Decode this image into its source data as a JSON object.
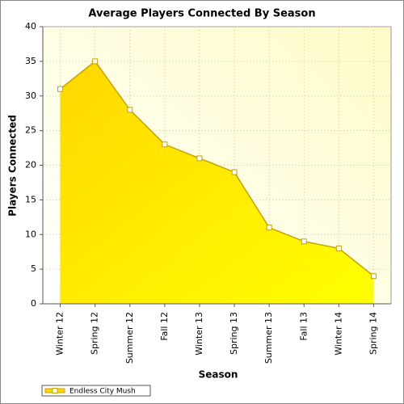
{
  "chart_data": {
    "type": "area",
    "title": "Average Players Connected By Season",
    "x_label": "Season",
    "y_label": "Players Connected",
    "categories": [
      "Winter 12",
      "Spring 12",
      "Summer 12",
      "Fall 12",
      "Winter 13",
      "Spring 13",
      "Summer 13",
      "Fall 13",
      "Winter 14",
      "Spring 14"
    ],
    "series": [
      {
        "name": "Endless City Mush",
        "color": "#ffd700",
        "values": [
          31,
          35,
          28,
          23,
          21,
          19,
          11,
          9,
          8,
          4
        ]
      }
    ],
    "ylim": [
      0,
      40
    ],
    "yticks": [
      0,
      5,
      10,
      15,
      20,
      25,
      30,
      35,
      40
    ],
    "grid": true,
    "legend": "bottom-left"
  }
}
